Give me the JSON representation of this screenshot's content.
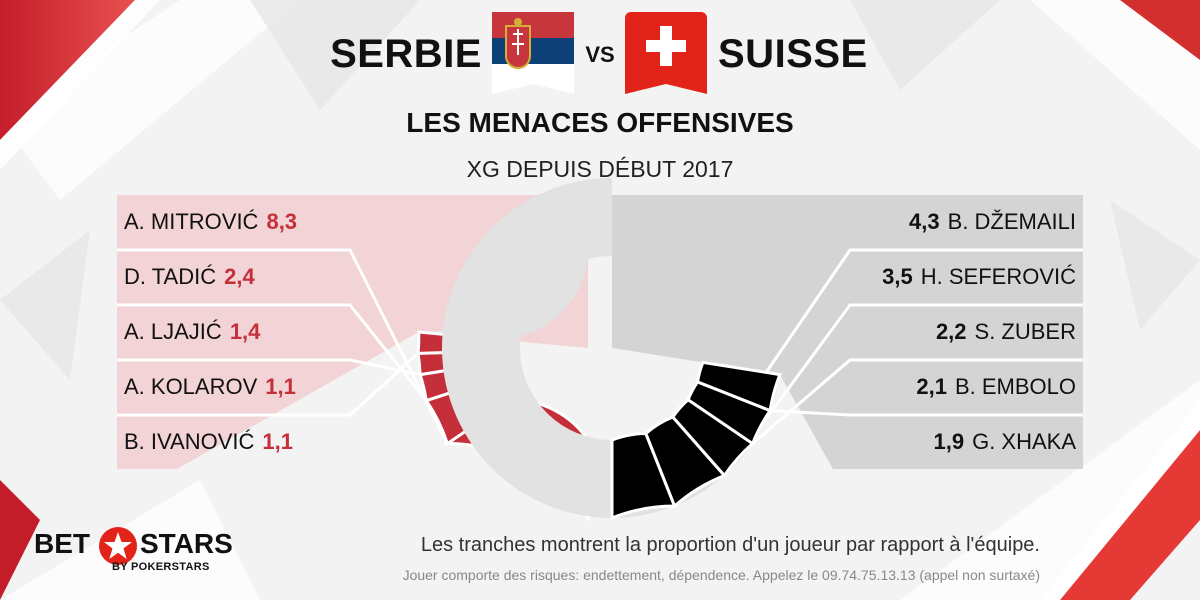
{
  "header": {
    "team_left": "SERBIE",
    "vs": "VS",
    "team_right": "SUISSE",
    "subtitle": "LES MENACES OFFENSIVES",
    "metric": "XG DEPUIS DÉBUT 2017"
  },
  "flags": {
    "left": "serbia-flag",
    "right": "switzerland-flag"
  },
  "colors": {
    "left_team": "#c42f3a",
    "left_band": "#f2d3d6",
    "right_team": "#000000",
    "right_band": "#d4d4d4",
    "team_rest": "#e2e2e2"
  },
  "chart_data": [
    {
      "type": "pie",
      "side": "left",
      "team": "SERBIE",
      "segments": [
        {
          "name": "A. MITROVIĆ",
          "value": 8.3,
          "display": "8,3",
          "fraction": 0.31
        },
        {
          "name": "D. TADIĆ",
          "value": 2.4,
          "display": "2,4",
          "fraction": 0.09
        },
        {
          "name": "A. LJAJIĆ",
          "value": 1.4,
          "display": "1,4",
          "fraction": 0.05
        },
        {
          "name": "A. KOLAROV",
          "value": 1.1,
          "display": "1,1",
          "fraction": 0.04
        },
        {
          "name": "B. IVANOVIĆ",
          "value": 1.1,
          "display": "1,1",
          "fraction": 0.04
        }
      ]
    },
    {
      "type": "pie",
      "side": "right",
      "team": "SUISSE",
      "segments": [
        {
          "name": "B. DŽEMAILI",
          "value": 4.3,
          "display": "4,3",
          "fraction": 0.12
        },
        {
          "name": "H. SEFEROVIĆ",
          "value": 3.5,
          "display": "3,5",
          "fraction": 0.11
        },
        {
          "name": "S. ZUBER",
          "value": 2.2,
          "display": "2,2",
          "fraction": 0.08
        },
        {
          "name": "B. EMBOLO",
          "value": 2.1,
          "display": "2,1",
          "fraction": 0.07
        },
        {
          "name": "G. XHAKA",
          "value": 1.9,
          "display": "1,9",
          "fraction": 0.07
        }
      ]
    }
  ],
  "footer": {
    "note": "Les tranches montrent la proportion d'un joueur par rapport à l'équipe.",
    "disclaimer": "Jouer comporte des risques: endettement, dépendence. Appelez le 09.74.75.13.13  (appel non surtaxé)"
  },
  "logo": {
    "bet": "BET",
    "stars": "STARS",
    "sub": "BY POKERSTARS",
    "star_color": "#e2231a"
  }
}
